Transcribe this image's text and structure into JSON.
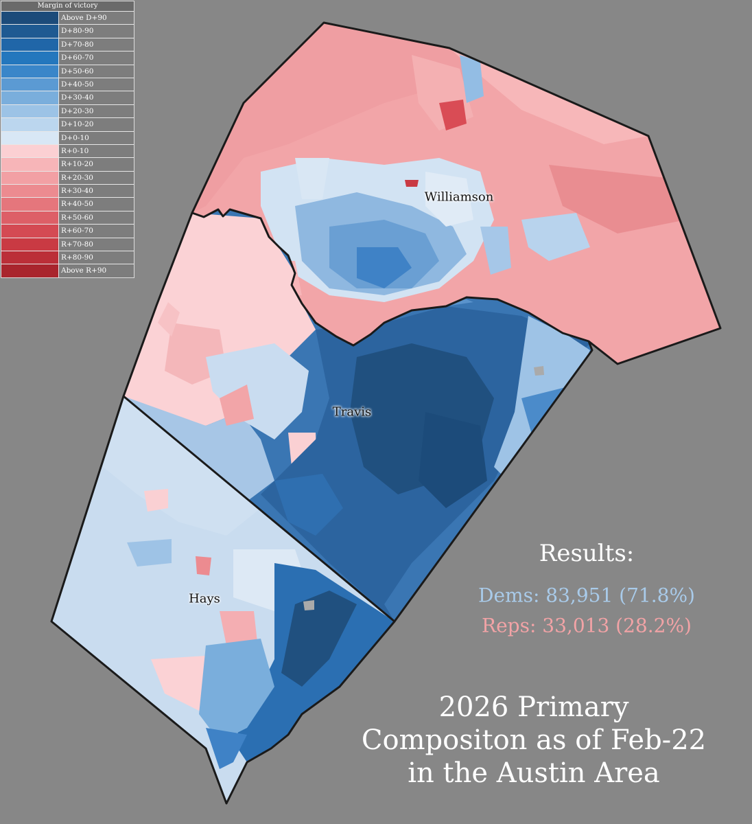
{
  "legend": {
    "title": "Margin of victory",
    "items": [
      {
        "label": "Above D+90",
        "color": "#1c4b7a"
      },
      {
        "label": "D+80-90",
        "color": "#1f5a92"
      },
      {
        "label": "D+70-80",
        "color": "#2066a8"
      },
      {
        "label": "D+60-70",
        "color": "#2477bd"
      },
      {
        "label": "D+50-60",
        "color": "#3a86c9"
      },
      {
        "label": "D+40-50",
        "color": "#5b9ad3"
      },
      {
        "label": "D+30-40",
        "color": "#7aaedc"
      },
      {
        "label": "D+20-30",
        "color": "#9cc3e6"
      },
      {
        "label": "D+10-20",
        "color": "#bbd6ee"
      },
      {
        "label": "D+0-10",
        "color": "#d8e7f5"
      },
      {
        "label": "R+0-10",
        "color": "#fbd0d3"
      },
      {
        "label": "R+10-20",
        "color": "#f7b5b8"
      },
      {
        "label": "R+20-30",
        "color": "#f2a0a4"
      },
      {
        "label": "R+30-40",
        "color": "#ec8b90"
      },
      {
        "label": "R+40-50",
        "color": "#e5767c"
      },
      {
        "label": "R+50-60",
        "color": "#dd5f67"
      },
      {
        "label": "R+60-70",
        "color": "#d44a53"
      },
      {
        "label": "R+70-80",
        "color": "#c93a43"
      },
      {
        "label": "R+80-90",
        "color": "#bb2f38"
      },
      {
        "label": "Above R+90",
        "color": "#a9252d"
      }
    ]
  },
  "counties": {
    "williamson": "Williamson",
    "travis": "Travis",
    "hays": "Hays"
  },
  "results": {
    "title": "Results:",
    "dems": "Dems: 83,951 (71.8%)",
    "reps": "Reps: 33,013 (28.2%)",
    "dem_color": "#a9cbea",
    "rep_color": "#f2a3a6"
  },
  "title_lines": [
    "2026 Primary",
    "Compositon as of Feb-22",
    "in the Austin Area"
  ],
  "colors": {
    "background": "#878787",
    "county_border": "#1a1a1a"
  }
}
